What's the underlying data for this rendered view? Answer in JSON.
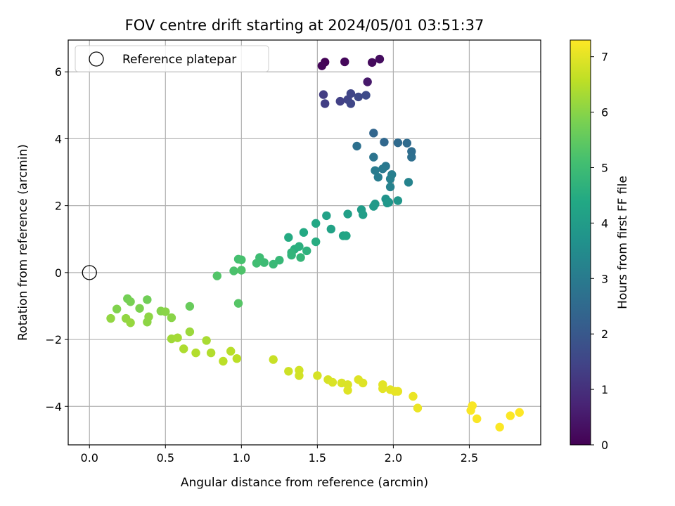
{
  "chart_data": {
    "type": "scatter",
    "title": "FOV centre drift starting at 2024/05/01 03:51:37",
    "xlabel": "Angular distance from reference (arcmin)",
    "ylabel": "Rotation from reference (arcmin)",
    "xlim": [
      -0.14,
      2.97
    ],
    "ylim": [
      -5.15,
      6.95
    ],
    "xticks": [
      0.0,
      0.5,
      1.0,
      1.5,
      2.0,
      2.5
    ],
    "xtick_labels": [
      "0.0",
      "0.5",
      "1.0",
      "1.5",
      "2.0",
      "2.5"
    ],
    "yticks": [
      -4,
      -2,
      0,
      2,
      4,
      6
    ],
    "ytick_labels": [
      "−4",
      "−2",
      "0",
      "2",
      "4",
      "6"
    ],
    "grid": true,
    "legend": {
      "placement": "top-left",
      "label": "Reference platepar"
    },
    "colorbar": {
      "label": "Hours from first FF file",
      "min": 0,
      "max": 7.3,
      "ticks": [
        0,
        1,
        2,
        3,
        4,
        5,
        6,
        7
      ],
      "colormap": "viridis"
    },
    "reference_point": {
      "x": 0.0,
      "y": 0.0
    },
    "points": [
      {
        "x": 1.55,
        "y": 6.29,
        "c": 0.05
      },
      {
        "x": 1.53,
        "y": 6.18,
        "c": 0.1
      },
      {
        "x": 1.68,
        "y": 6.3,
        "c": 0.15
      },
      {
        "x": 1.86,
        "y": 6.28,
        "c": 0.2
      },
      {
        "x": 1.91,
        "y": 6.38,
        "c": 0.25
      },
      {
        "x": 1.83,
        "y": 5.7,
        "c": 0.5
      },
      {
        "x": 1.54,
        "y": 5.32,
        "c": 1.3
      },
      {
        "x": 1.55,
        "y": 5.05,
        "c": 1.35
      },
      {
        "x": 1.65,
        "y": 5.12,
        "c": 1.4
      },
      {
        "x": 1.7,
        "y": 5.17,
        "c": 1.45
      },
      {
        "x": 1.72,
        "y": 5.35,
        "c": 1.5
      },
      {
        "x": 1.72,
        "y": 5.05,
        "c": 1.55
      },
      {
        "x": 1.77,
        "y": 5.25,
        "c": 1.6
      },
      {
        "x": 1.82,
        "y": 5.3,
        "c": 1.65
      },
      {
        "x": 1.87,
        "y": 4.17,
        "c": 2.4
      },
      {
        "x": 1.94,
        "y": 3.9,
        "c": 2.45
      },
      {
        "x": 2.03,
        "y": 3.88,
        "c": 2.5
      },
      {
        "x": 2.09,
        "y": 3.87,
        "c": 2.55
      },
      {
        "x": 2.12,
        "y": 3.62,
        "c": 2.6
      },
      {
        "x": 2.12,
        "y": 3.45,
        "c": 2.65
      },
      {
        "x": 1.76,
        "y": 3.78,
        "c": 2.7
      },
      {
        "x": 1.87,
        "y": 3.45,
        "c": 2.8
      },
      {
        "x": 1.95,
        "y": 3.18,
        "c": 2.9
      },
      {
        "x": 1.93,
        "y": 3.1,
        "c": 2.95
      },
      {
        "x": 1.88,
        "y": 3.05,
        "c": 3.0
      },
      {
        "x": 1.9,
        "y": 2.85,
        "c": 3.05
      },
      {
        "x": 1.99,
        "y": 2.93,
        "c": 3.1
      },
      {
        "x": 1.98,
        "y": 2.8,
        "c": 3.15
      },
      {
        "x": 1.98,
        "y": 2.56,
        "c": 3.2
      },
      {
        "x": 2.1,
        "y": 2.7,
        "c": 3.25
      },
      {
        "x": 1.95,
        "y": 2.2,
        "c": 3.7
      },
      {
        "x": 1.97,
        "y": 2.1,
        "c": 3.75
      },
      {
        "x": 2.03,
        "y": 2.15,
        "c": 3.8
      },
      {
        "x": 1.96,
        "y": 2.08,
        "c": 3.85
      },
      {
        "x": 1.88,
        "y": 2.05,
        "c": 3.9
      },
      {
        "x": 1.87,
        "y": 1.98,
        "c": 3.95
      },
      {
        "x": 1.79,
        "y": 1.88,
        "c": 4.0
      },
      {
        "x": 1.8,
        "y": 1.73,
        "c": 4.05
      },
      {
        "x": 1.7,
        "y": 1.75,
        "c": 4.1
      },
      {
        "x": 1.56,
        "y": 1.7,
        "c": 4.15
      },
      {
        "x": 1.59,
        "y": 1.3,
        "c": 4.2
      },
      {
        "x": 1.67,
        "y": 1.1,
        "c": 4.25
      },
      {
        "x": 1.69,
        "y": 1.1,
        "c": 4.3
      },
      {
        "x": 1.49,
        "y": 1.47,
        "c": 4.35
      },
      {
        "x": 1.41,
        "y": 1.2,
        "c": 4.4
      },
      {
        "x": 1.31,
        "y": 1.05,
        "c": 4.45
      },
      {
        "x": 1.49,
        "y": 0.92,
        "c": 4.5
      },
      {
        "x": 1.35,
        "y": 0.7,
        "c": 4.55
      },
      {
        "x": 1.38,
        "y": 0.78,
        "c": 4.6
      },
      {
        "x": 1.43,
        "y": 0.65,
        "c": 4.65
      },
      {
        "x": 1.33,
        "y": 0.6,
        "c": 4.7
      },
      {
        "x": 1.33,
        "y": 0.52,
        "c": 4.75
      },
      {
        "x": 1.39,
        "y": 0.45,
        "c": 4.8
      },
      {
        "x": 1.25,
        "y": 0.37,
        "c": 4.85
      },
      {
        "x": 1.21,
        "y": 0.25,
        "c": 4.9
      },
      {
        "x": 1.15,
        "y": 0.3,
        "c": 4.95
      },
      {
        "x": 1.12,
        "y": 0.45,
        "c": 5.0
      },
      {
        "x": 1.1,
        "y": 0.28,
        "c": 5.05
      },
      {
        "x": 0.98,
        "y": 0.4,
        "c": 5.1
      },
      {
        "x": 1.0,
        "y": 0.38,
        "c": 5.15
      },
      {
        "x": 0.95,
        "y": 0.05,
        "c": 5.2
      },
      {
        "x": 1.0,
        "y": 0.07,
        "c": 5.25
      },
      {
        "x": 0.84,
        "y": -0.1,
        "c": 5.3
      },
      {
        "x": 0.98,
        "y": -0.92,
        "c": 5.35
      },
      {
        "x": 0.66,
        "y": -1.01,
        "c": 5.6
      },
      {
        "x": 0.38,
        "y": -0.81,
        "c": 5.7
      },
      {
        "x": 0.25,
        "y": -0.78,
        "c": 5.75
      },
      {
        "x": 0.27,
        "y": -0.87,
        "c": 5.8
      },
      {
        "x": 0.33,
        "y": -1.07,
        "c": 5.85
      },
      {
        "x": 0.18,
        "y": -1.09,
        "c": 5.9
      },
      {
        "x": 0.47,
        "y": -1.15,
        "c": 5.95
      },
      {
        "x": 0.5,
        "y": -1.17,
        "c": 6.0
      },
      {
        "x": 0.54,
        "y": -1.35,
        "c": 6.0
      },
      {
        "x": 0.39,
        "y": -1.32,
        "c": 6.05
      },
      {
        "x": 0.38,
        "y": -1.48,
        "c": 6.05
      },
      {
        "x": 0.14,
        "y": -1.37,
        "c": 6.1
      },
      {
        "x": 0.24,
        "y": -1.37,
        "c": 6.1
      },
      {
        "x": 0.27,
        "y": -1.5,
        "c": 6.15
      },
      {
        "x": 0.66,
        "y": -1.77,
        "c": 6.2
      },
      {
        "x": 0.54,
        "y": -1.98,
        "c": 6.25
      },
      {
        "x": 0.58,
        "y": -1.95,
        "c": 6.3
      },
      {
        "x": 0.77,
        "y": -2.03,
        "c": 6.35
      },
      {
        "x": 0.62,
        "y": -2.28,
        "c": 6.4
      },
      {
        "x": 0.7,
        "y": -2.4,
        "c": 6.45
      },
      {
        "x": 0.8,
        "y": -2.4,
        "c": 6.45
      },
      {
        "x": 0.93,
        "y": -2.35,
        "c": 6.5
      },
      {
        "x": 0.97,
        "y": -2.57,
        "c": 6.55
      },
      {
        "x": 0.88,
        "y": -2.65,
        "c": 6.55
      },
      {
        "x": 1.21,
        "y": -2.6,
        "c": 6.7
      },
      {
        "x": 1.31,
        "y": -2.95,
        "c": 6.75
      },
      {
        "x": 1.38,
        "y": -2.92,
        "c": 6.8
      },
      {
        "x": 1.38,
        "y": -3.08,
        "c": 6.8
      },
      {
        "x": 1.5,
        "y": -3.08,
        "c": 6.85
      },
      {
        "x": 1.57,
        "y": -3.2,
        "c": 6.85
      },
      {
        "x": 1.6,
        "y": -3.28,
        "c": 6.9
      },
      {
        "x": 1.66,
        "y": -3.3,
        "c": 6.9
      },
      {
        "x": 1.7,
        "y": -3.35,
        "c": 6.9
      },
      {
        "x": 1.7,
        "y": -3.52,
        "c": 6.95
      },
      {
        "x": 1.77,
        "y": -3.2,
        "c": 6.95
      },
      {
        "x": 1.8,
        "y": -3.3,
        "c": 6.95
      },
      {
        "x": 1.93,
        "y": -3.35,
        "c": 7.0
      },
      {
        "x": 1.93,
        "y": -3.47,
        "c": 7.0
      },
      {
        "x": 1.98,
        "y": -3.5,
        "c": 7.0
      },
      {
        "x": 2.01,
        "y": -3.55,
        "c": 7.05
      },
      {
        "x": 2.03,
        "y": -3.55,
        "c": 7.05
      },
      {
        "x": 2.13,
        "y": -3.7,
        "c": 7.1
      },
      {
        "x": 2.16,
        "y": -4.05,
        "c": 7.1
      },
      {
        "x": 2.52,
        "y": -3.98,
        "c": 7.25
      },
      {
        "x": 2.51,
        "y": -4.12,
        "c": 7.25
      },
      {
        "x": 2.55,
        "y": -4.37,
        "c": 7.25
      },
      {
        "x": 2.7,
        "y": -4.62,
        "c": 7.28
      },
      {
        "x": 2.77,
        "y": -4.28,
        "c": 7.28
      },
      {
        "x": 2.83,
        "y": -4.18,
        "c": 7.3
      }
    ]
  }
}
